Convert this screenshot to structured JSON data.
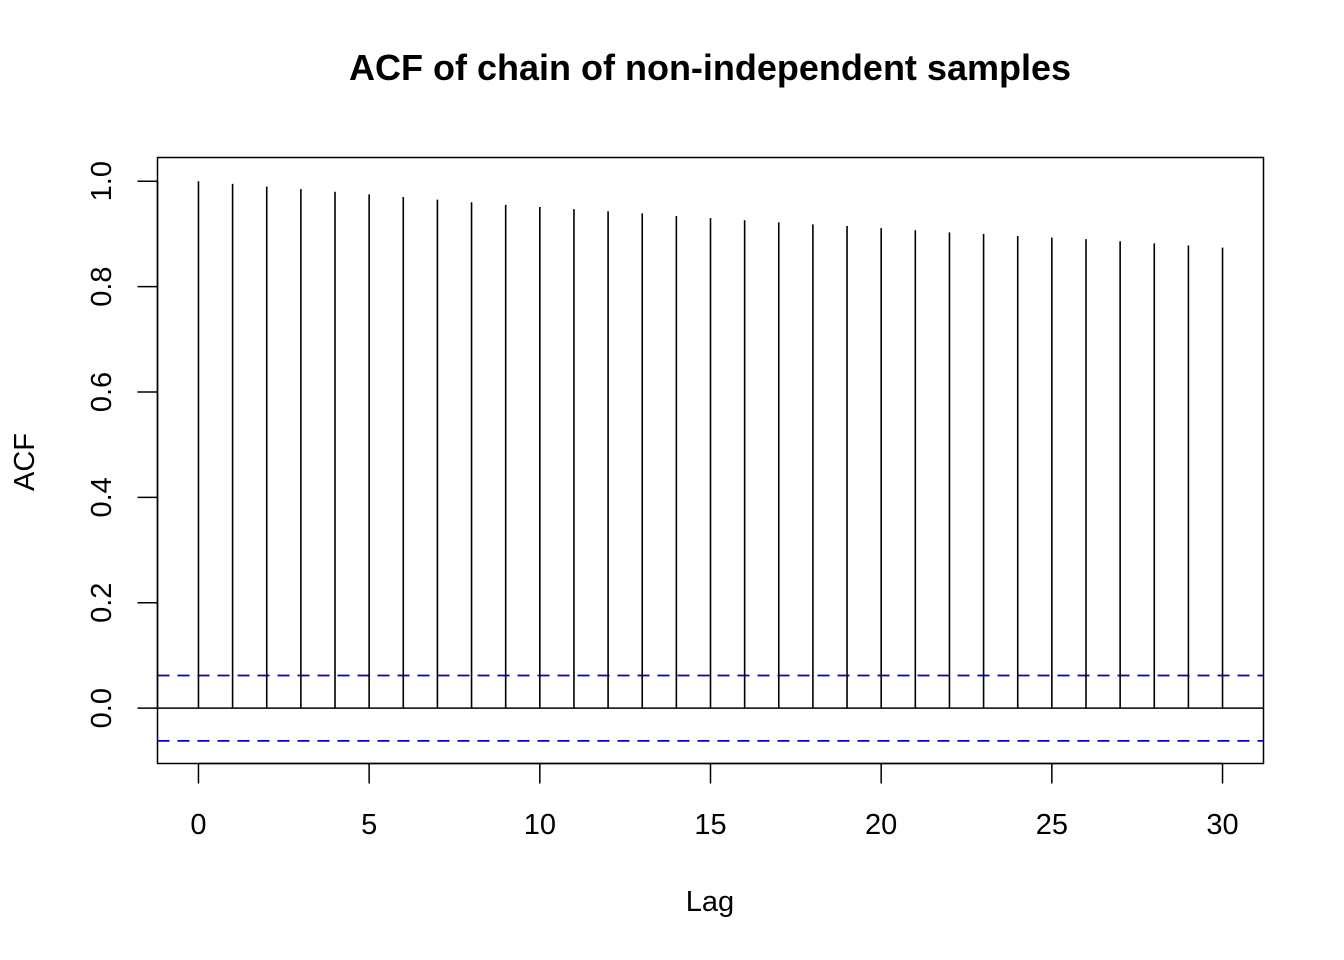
{
  "chart_data": {
    "type": "bar",
    "title": "ACF of chain of non-independent samples",
    "xlabel": "Lag",
    "ylabel": "ACF",
    "x": [
      0,
      1,
      2,
      3,
      4,
      5,
      6,
      7,
      8,
      9,
      10,
      11,
      12,
      13,
      14,
      15,
      16,
      17,
      18,
      19,
      20,
      21,
      22,
      23,
      24,
      25,
      26,
      27,
      28,
      29,
      30
    ],
    "values": [
      1.0,
      0.995,
      0.99,
      0.985,
      0.98,
      0.975,
      0.97,
      0.965,
      0.96,
      0.955,
      0.951,
      0.947,
      0.943,
      0.939,
      0.934,
      0.93,
      0.926,
      0.922,
      0.918,
      0.915,
      0.911,
      0.907,
      0.903,
      0.9,
      0.896,
      0.893,
      0.89,
      0.886,
      0.882,
      0.878,
      0.874
    ],
    "xlim": [
      -1.2,
      31.2
    ],
    "ylim": [
      -0.105,
      1.045
    ],
    "x_ticks": [
      "0",
      "5",
      "10",
      "15",
      "20",
      "25",
      "30"
    ],
    "x_tick_values": [
      0,
      5,
      10,
      15,
      20,
      25,
      30
    ],
    "y_ticks": [
      "0.0",
      "0.2",
      "0.4",
      "0.6",
      "0.8",
      "1.0"
    ],
    "y_tick_values": [
      0,
      0.2,
      0.4,
      0.6,
      0.8,
      1.0
    ],
    "confidence_bounds": [
      0.062,
      -0.062
    ],
    "zero_line": 0,
    "grid": false,
    "legend": "none",
    "colors": {
      "bars": "#000000",
      "confidence": "#0000cc",
      "frame": "#000000"
    }
  }
}
